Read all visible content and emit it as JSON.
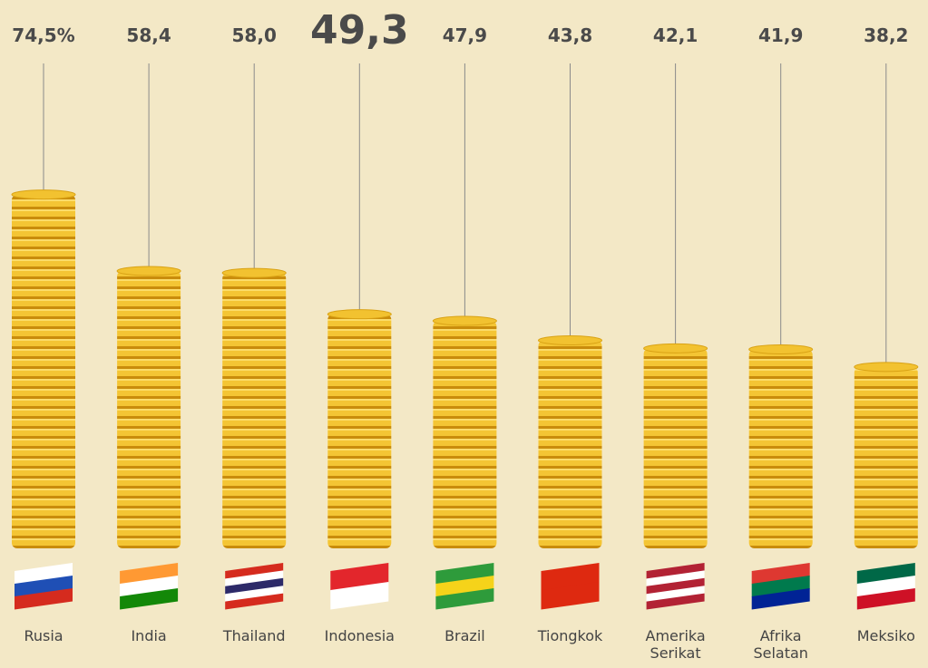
{
  "chart_data": {
    "type": "bar",
    "categories": [
      "Rusia",
      "India",
      "Thailand",
      "Indonesia",
      "Brazil",
      "Tiongkok",
      "Amerika Serikat",
      "Afrika Selatan",
      "Meksiko"
    ],
    "values": [
      74.5,
      58.4,
      58.0,
      49.3,
      47.9,
      43.8,
      42.1,
      41.9,
      38.2
    ],
    "value_labels": [
      "74,5%",
      "58,4",
      "58,0",
      "49,3",
      "47,9",
      "43,8",
      "42,1",
      "41,9",
      "38,2"
    ],
    "color": "#f2c230",
    "highlight": "Indonesia",
    "highlight_color": "#7f1d1d"
  }
}
